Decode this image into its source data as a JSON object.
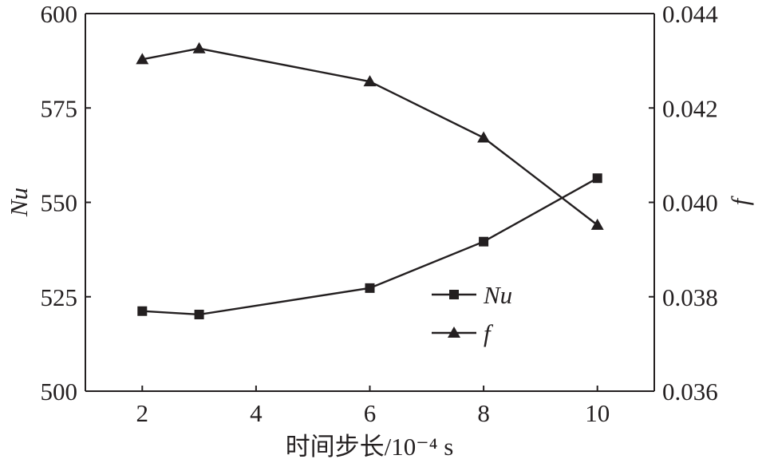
{
  "chart_data": {
    "type": "line",
    "xlabel": "时间步长/10⁻⁴ s",
    "ylabel_left": "Nu",
    "ylabel_right": "f",
    "x": [
      2,
      3,
      6,
      8,
      10
    ],
    "xlim": [
      1,
      11
    ],
    "xticks": [
      "2",
      "4",
      "6",
      "8",
      "10"
    ],
    "xtick_values": [
      2,
      4,
      6,
      8,
      10
    ],
    "ylim_left": [
      500,
      600
    ],
    "yticks_left": [
      "500",
      "525",
      "550",
      "575",
      "600"
    ],
    "ytick_values_left": [
      500,
      525,
      550,
      575,
      600
    ],
    "ylim_right": [
      0.036,
      0.044
    ],
    "yticks_right": [
      "0.036",
      "0.038",
      "0.040",
      "0.042",
      "0.044"
    ],
    "ytick_values_right": [
      0.036,
      0.038,
      0.04,
      0.042,
      0.044
    ],
    "grid": false,
    "legend_position": "lower-right-center",
    "series": [
      {
        "name": "Nu",
        "axis": "left",
        "marker": "square",
        "values": [
          521.2,
          520.3,
          527.3,
          539.6,
          556.4
        ]
      },
      {
        "name": "f",
        "axis": "right",
        "marker": "triangle",
        "values": [
          0.04303,
          0.04326,
          0.04256,
          0.04137,
          0.03952
        ]
      }
    ]
  }
}
